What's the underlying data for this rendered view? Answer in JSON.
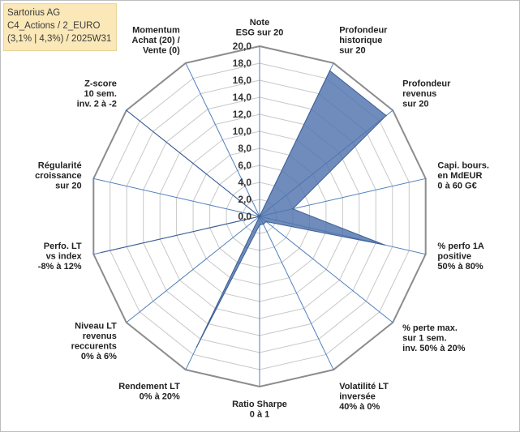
{
  "title_box": {
    "line1": "Sartorius AG",
    "line2": "C4_Actions / 2_EURO",
    "line3": "(3,1% | 4,3%) / 2025W31"
  },
  "chart_data": {
    "type": "radar",
    "rmin": 0,
    "rmax": 20,
    "ticks": [
      "0,0",
      "2,0",
      "4,0",
      "6,0",
      "8,0",
      "10,0",
      "12,0",
      "14,0",
      "16,0",
      "18,0",
      "20,0"
    ],
    "grid": true,
    "legend": "none",
    "series_color": "#4f73ad",
    "series": [
      {
        "values": [
          0,
          19,
          19,
          4,
          15,
          1,
          1,
          1,
          17,
          0,
          19,
          0,
          20,
          0
        ]
      }
    ],
    "axes": [
      [
        "Note",
        "ESG sur 20"
      ],
      [
        "Profondeur",
        "historique",
        "sur 20"
      ],
      [
        "Profondeur",
        "revenus",
        "sur 20"
      ],
      [
        "Capi. bours.",
        "en MdEUR",
        "0 à 60 G€"
      ],
      [
        "% perfo 1A",
        "positive",
        "50% à 80%"
      ],
      [
        "% perte max.",
        "sur 1 sem.",
        "inv. 50% à 20%"
      ],
      [
        "Volatilité LT",
        "inversée",
        "40% à 0%"
      ],
      [
        "Ratio Sharpe",
        "0 à 1"
      ],
      [
        "Rendement LT",
        "0% à 20%"
      ],
      [
        "Niveau LT",
        "revenus",
        "reccurents",
        "0% à 6%"
      ],
      [
        "Perfo. LT",
        "vs index",
        "-8% à 12%"
      ],
      [
        "Régularité",
        "croissance",
        "sur 20"
      ],
      [
        "Z-score",
        "10 sem.",
        "inv. 2 à -2"
      ],
      [
        "Momentum",
        "Achat (20) /",
        "Vente (0)"
      ]
    ]
  }
}
